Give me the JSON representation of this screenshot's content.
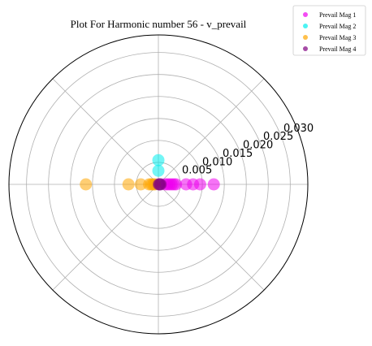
{
  "chart_data": {
    "type": "scatter",
    "projection": "polar",
    "title": "Plot For Harmonic number 56 - v_prevail",
    "r_ticks": [
      0.005,
      0.01,
      0.015,
      0.02,
      0.025,
      0.03
    ],
    "r_tick_labels": [
      "0.005",
      "0.010",
      "0.015",
      "0.020",
      "0.025",
      "0.030"
    ],
    "rlim": [
      0,
      0.034
    ],
    "grid": true,
    "legend_placement": "top-right",
    "series": [
      {
        "name": "Prevail Mag 1",
        "color": "#ee00ee",
        "theta_deg": 0,
        "r": [
          0.0015,
          0.002,
          0.0025,
          0.003,
          0.0035,
          0.004,
          0.0063,
          0.0079,
          0.0095,
          0.0126
        ]
      },
      {
        "name": "Prevail Mag 2",
        "color": "#00eeee",
        "theta_deg": 90,
        "r": [
          0.0031,
          0.0055
        ]
      },
      {
        "name": "Prevail Mag 3",
        "color": "#ffa500",
        "theta_deg": 180,
        "r": [
          0.0008,
          0.0012,
          0.0016,
          0.0021,
          0.004,
          0.0068,
          0.0165
        ]
      },
      {
        "name": "Prevail Mag 4",
        "color": "#800080",
        "theta_deg": 0,
        "r": [
          0.0001,
          0.0003,
          0.0005
        ]
      }
    ]
  }
}
